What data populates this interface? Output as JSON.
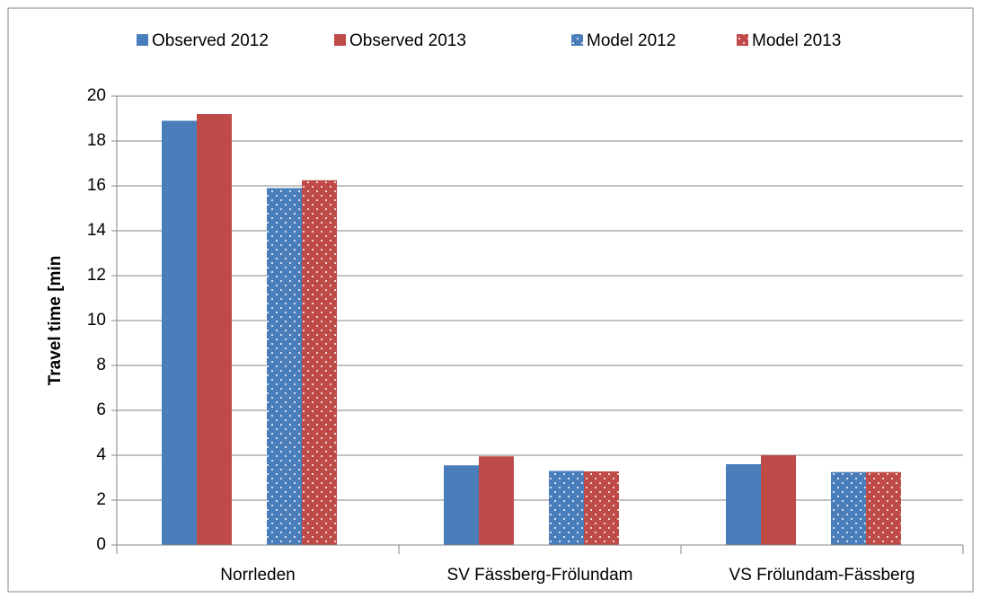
{
  "chart_data": {
    "type": "bar",
    "categories": [
      "Norrleden",
      "SV Fässberg-Frölundam",
      "VS Frölundam-Fässberg"
    ],
    "y_label": "Travel time [min",
    "series": [
      {
        "name": "Observed 2012",
        "color": "#4a7ebb",
        "pattern": "solid",
        "values": [
          18.9,
          3.55,
          3.6
        ]
      },
      {
        "name": "Observed 2013",
        "color": "#be4b48",
        "pattern": "solid",
        "values": [
          19.2,
          3.95,
          4.0
        ]
      },
      {
        "name": "Model 2012",
        "color": "#4a7ebb",
        "pattern": "dots",
        "values": [
          15.9,
          3.3,
          3.25
        ]
      },
      {
        "name": "Model 2013",
        "color": "#be4b48",
        "pattern": "dots",
        "values": [
          16.25,
          3.28,
          3.25
        ]
      }
    ],
    "ylim": [
      0,
      20
    ],
    "yticks": [
      0,
      2,
      4,
      6,
      8,
      10,
      12,
      14,
      16,
      18,
      20
    ],
    "grid": true,
    "legend": "top"
  }
}
